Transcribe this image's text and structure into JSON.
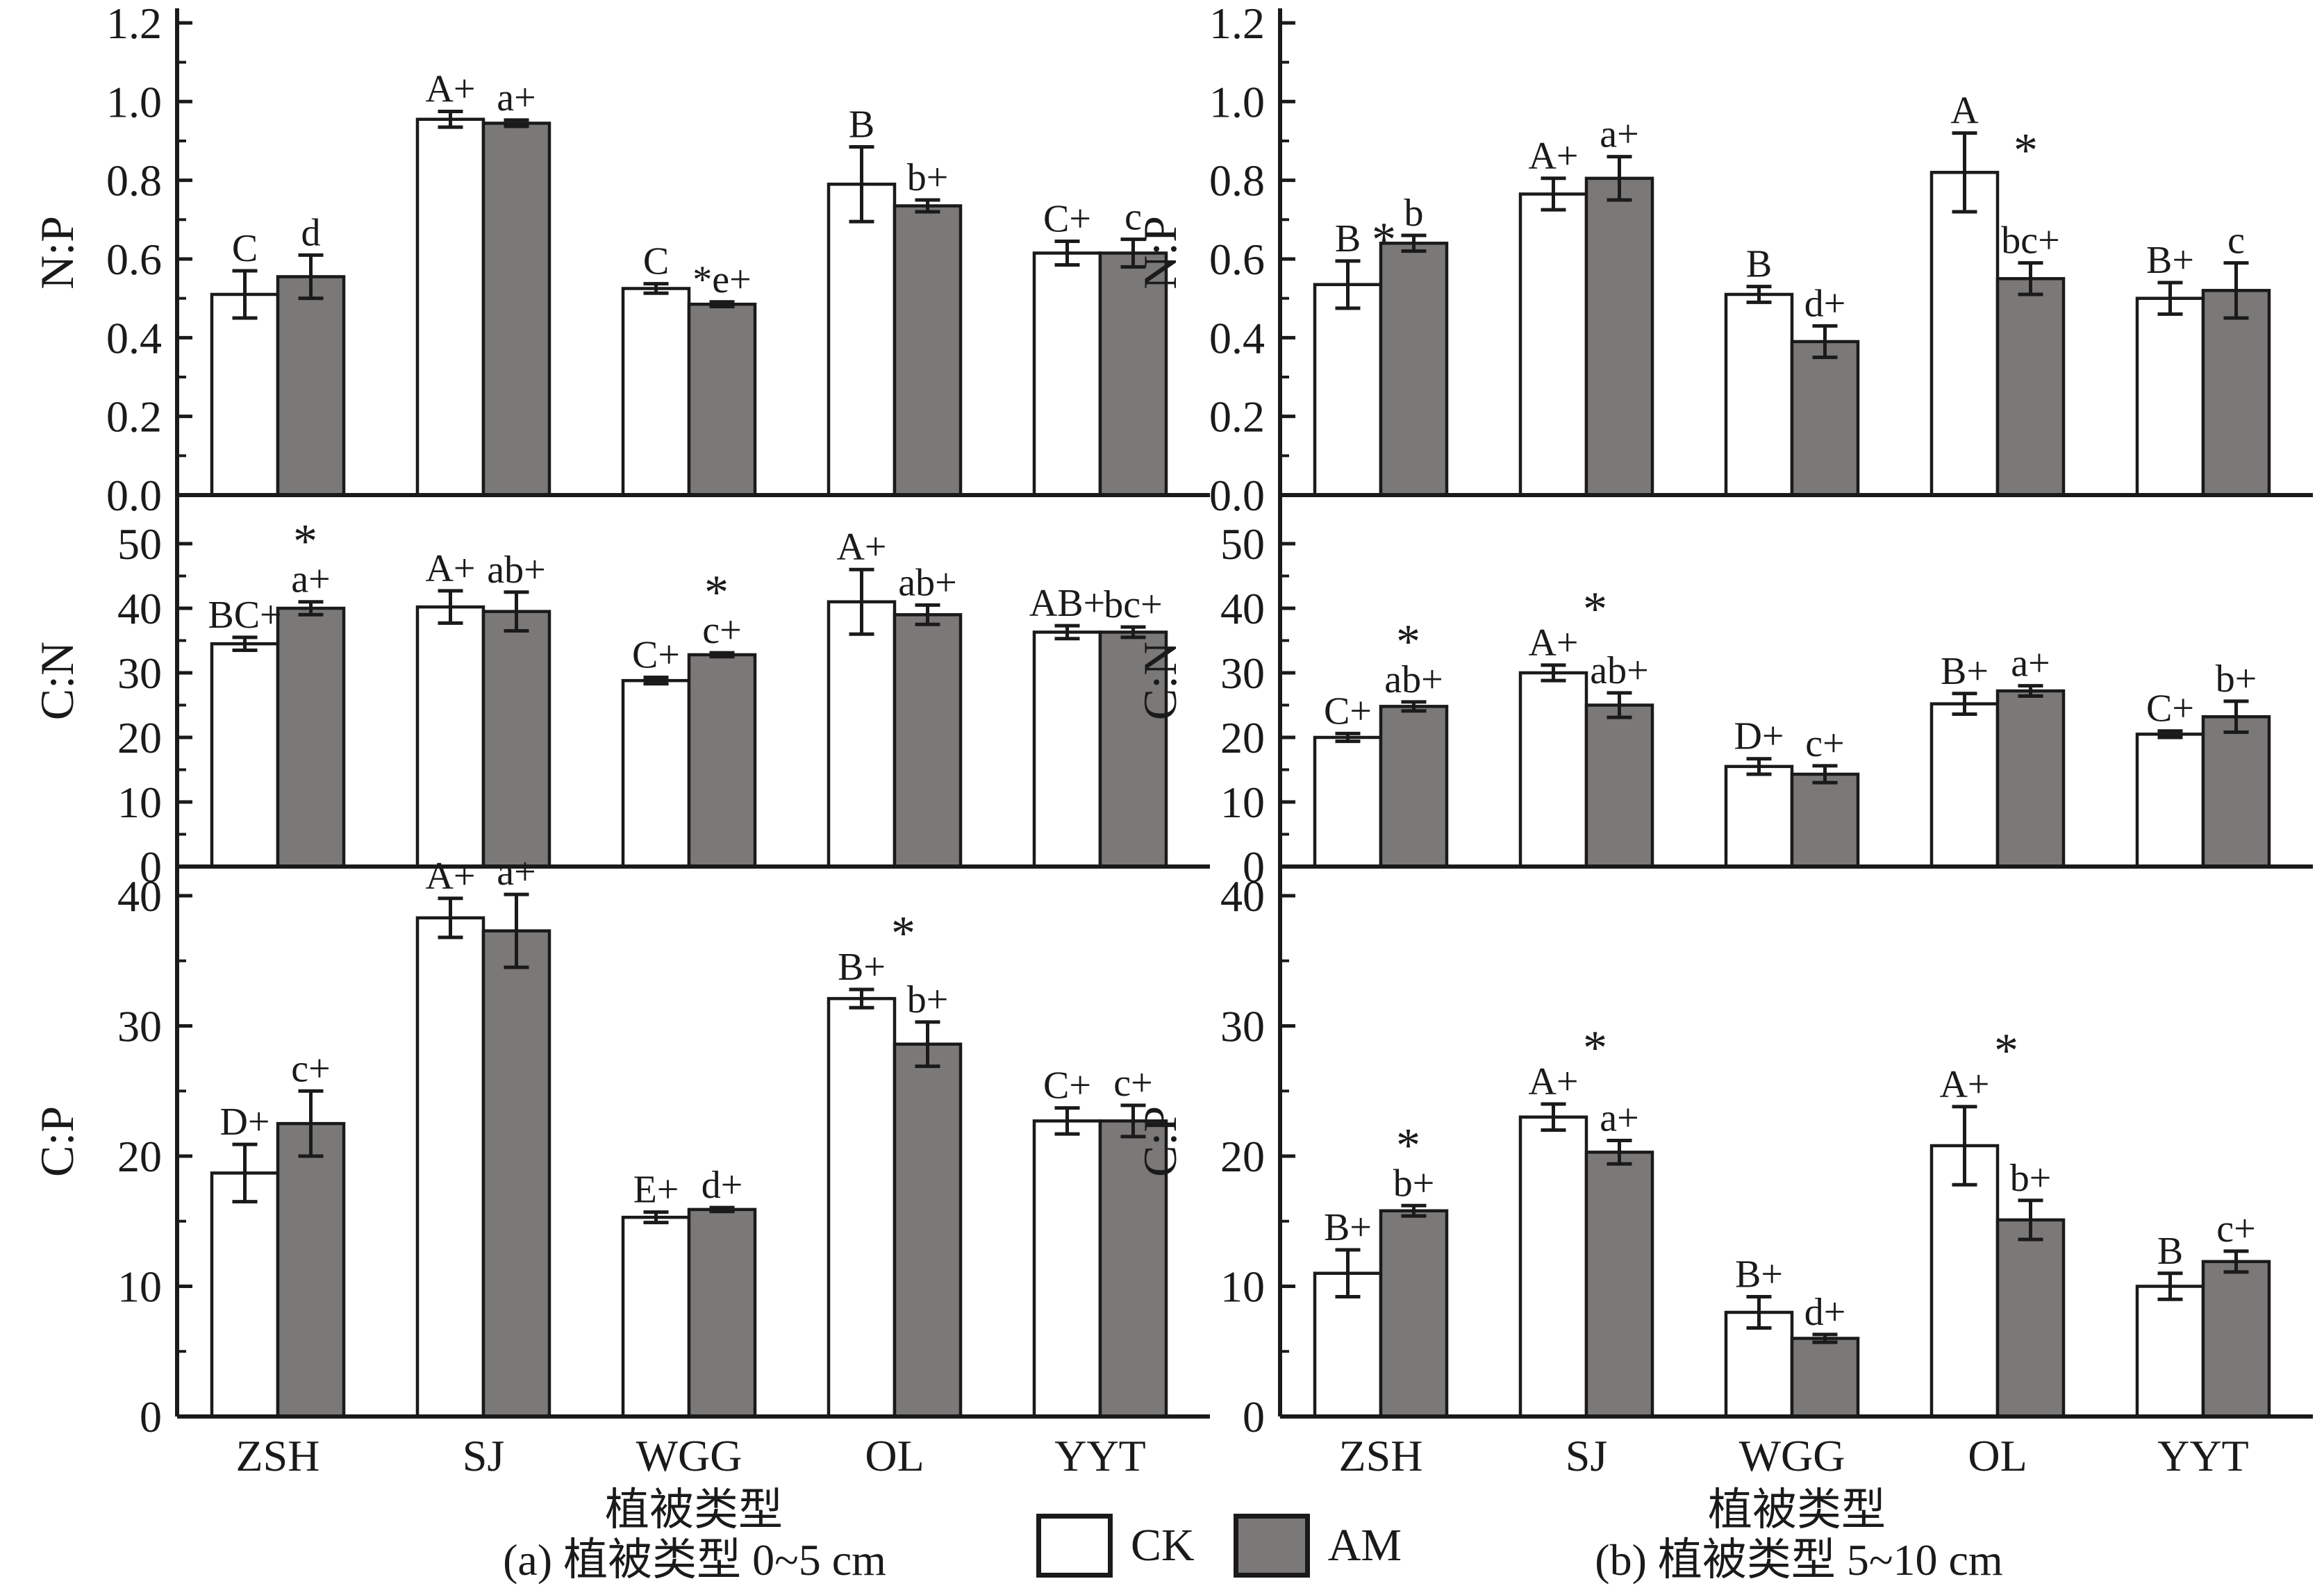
{
  "meta": {
    "legend": {
      "ck": "CK",
      "am": "AM"
    },
    "colors": {
      "ck_fill": "#ffffff",
      "am_fill": "#7b7878",
      "stroke": "#1a1a1a"
    },
    "xlabel": "植被类型",
    "captions": {
      "a": "(a) 植被类型 0~5 cm",
      "b": "(b) 植被类型 5~10 cm"
    }
  },
  "chart_data": [
    {
      "type": "bar",
      "id": "a-np",
      "column": "a",
      "row": 0,
      "ylabel": "N:P",
      "depth": "0~5 cm",
      "ylim": [
        0,
        1.2
      ],
      "ytick_step": 0.2,
      "ytick_minor": 0.1,
      "ydecimals": 1,
      "categories": [
        "ZSH",
        "SJ",
        "WGG",
        "OL",
        "YYT"
      ],
      "series": [
        {
          "name": "CK",
          "values": [
            0.51,
            0.955,
            0.525,
            0.79,
            0.615
          ],
          "errors": [
            0.06,
            0.02,
            0.012,
            0.095,
            0.03
          ],
          "labels": [
            "C",
            "A+",
            "C",
            "B",
            "C+"
          ]
        },
        {
          "name": "AM",
          "values": [
            0.555,
            0.945,
            0.485,
            0.735,
            0.615
          ],
          "errors": [
            0.055,
            0.008,
            0.006,
            0.015,
            0.035
          ],
          "labels": [
            "d",
            "a+",
            "*e+",
            "b+",
            "c"
          ]
        }
      ],
      "stars": []
    },
    {
      "type": "bar",
      "id": "b-np",
      "column": "b",
      "row": 0,
      "ylabel": "N:P",
      "depth": "5~10 cm",
      "ylim": [
        0,
        1.2
      ],
      "ytick_step": 0.2,
      "ytick_minor": 0.1,
      "ydecimals": 1,
      "categories": [
        "ZSH",
        "SJ",
        "WGG",
        "OL",
        "YYT"
      ],
      "series": [
        {
          "name": "CK",
          "values": [
            0.535,
            0.765,
            0.51,
            0.82,
            0.5
          ],
          "errors": [
            0.06,
            0.04,
            0.02,
            0.1,
            0.04
          ],
          "labels": [
            "B",
            "A+",
            "B",
            "A",
            "B+"
          ]
        },
        {
          "name": "AM",
          "values": [
            0.64,
            0.805,
            0.39,
            0.55,
            0.52
          ],
          "errors": [
            0.02,
            0.055,
            0.04,
            0.04,
            0.07
          ],
          "labels": [
            "b",
            "a+",
            "d+",
            "bc+",
            "c"
          ]
        }
      ],
      "stars": [
        {
          "category": "ZSH",
          "anchor": "CK",
          "pos": "right"
        },
        {
          "category": "OL",
          "anchor": "CK",
          "pos": "right-low"
        }
      ]
    },
    {
      "type": "bar",
      "id": "a-cn",
      "column": "a",
      "row": 1,
      "ylabel": "C:N",
      "depth": "0~5 cm",
      "ylim": [
        0,
        50
      ],
      "ytick_step": 10,
      "ytick_minor": 5,
      "ydecimals": 0,
      "categories": [
        "ZSH",
        "SJ",
        "WGG",
        "OL",
        "YYT"
      ],
      "series": [
        {
          "name": "CK",
          "values": [
            34.5,
            40.2,
            28.8,
            41.0,
            36.3
          ],
          "errors": [
            1.0,
            2.5,
            0.5,
            5.0,
            1.0
          ],
          "labels": [
            "BC+",
            "A+",
            "C+",
            "A+",
            "AB+"
          ]
        },
        {
          "name": "AM",
          "values": [
            40.0,
            39.5,
            32.8,
            39.0,
            36.3
          ],
          "errors": [
            1.0,
            3.0,
            0.3,
            1.5,
            0.8
          ],
          "labels": [
            "a+",
            "ab+",
            "c+",
            "ab+",
            "bc+"
          ]
        }
      ],
      "stars": [
        {
          "category": "ZSH",
          "anchor": "AM",
          "pos": "above"
        },
        {
          "category": "WGG",
          "anchor": "AM",
          "pos": "above"
        }
      ]
    },
    {
      "type": "bar",
      "id": "b-cn",
      "column": "b",
      "row": 1,
      "ylabel": "C:N",
      "depth": "5~10 cm",
      "ylim": [
        0,
        50
      ],
      "ytick_step": 10,
      "ytick_minor": 5,
      "ydecimals": 0,
      "categories": [
        "ZSH",
        "SJ",
        "WGG",
        "OL",
        "YYT"
      ],
      "series": [
        {
          "name": "CK",
          "values": [
            20.0,
            30.0,
            15.5,
            25.2,
            20.5
          ],
          "errors": [
            0.6,
            1.2,
            1.2,
            1.6,
            0.5
          ],
          "labels": [
            "C+",
            "A+",
            "D+",
            "B+",
            "C+"
          ]
        },
        {
          "name": "AM",
          "values": [
            24.8,
            25.0,
            14.3,
            27.2,
            23.2
          ],
          "errors": [
            0.7,
            1.9,
            1.3,
            0.8,
            2.4
          ],
          "labels": [
            "ab+",
            "ab+",
            "c+",
            "a+",
            "b+"
          ]
        }
      ],
      "stars": [
        {
          "category": "ZSH",
          "anchor": "AM",
          "pos": "above"
        },
        {
          "category": "SJ",
          "anchor": "CK",
          "pos": "above-right"
        }
      ]
    },
    {
      "type": "bar",
      "id": "a-cp",
      "column": "a",
      "row": 2,
      "ylabel": "C:P",
      "depth": "0~5 cm",
      "ylim": [
        0,
        40
      ],
      "ytick_step": 10,
      "ytick_minor": 5,
      "ydecimals": 0,
      "categories": [
        "ZSH",
        "SJ",
        "WGG",
        "OL",
        "YYT"
      ],
      "series": [
        {
          "name": "CK",
          "values": [
            18.7,
            38.3,
            15.3,
            32.1,
            22.7
          ],
          "errors": [
            2.2,
            1.5,
            0.4,
            0.7,
            1.0
          ],
          "labels": [
            "D+",
            "A+",
            "E+",
            "B+",
            "C+"
          ]
        },
        {
          "name": "AM",
          "values": [
            22.5,
            37.3,
            15.9,
            28.6,
            22.7
          ],
          "errors": [
            2.5,
            2.8,
            0.15,
            1.7,
            1.2
          ],
          "labels": [
            "c+",
            "a+",
            "d+",
            "b+",
            "c+"
          ]
        }
      ],
      "stars": [
        {
          "category": "OL",
          "anchor": "CK",
          "pos": "above-right"
        }
      ]
    },
    {
      "type": "bar",
      "id": "b-cp",
      "column": "b",
      "row": 2,
      "ylabel": "C:P",
      "depth": "5~10 cm",
      "ylim": [
        0,
        40
      ],
      "ytick_step": 10,
      "ytick_minor": 5,
      "ydecimals": 0,
      "categories": [
        "ZSH",
        "SJ",
        "WGG",
        "OL",
        "YYT"
      ],
      "series": [
        {
          "name": "CK",
          "values": [
            11.0,
            23.0,
            8.0,
            20.8,
            10.0
          ],
          "errors": [
            1.8,
            1.0,
            1.2,
            3.0,
            1.0
          ],
          "labels": [
            "B+",
            "A+",
            "B+",
            "A+",
            "B"
          ]
        },
        {
          "name": "AM",
          "values": [
            15.8,
            20.3,
            6.0,
            15.1,
            11.9
          ],
          "errors": [
            0.4,
            0.9,
            0.3,
            1.5,
            0.8
          ],
          "labels": [
            "b+",
            "a+",
            "d+",
            "b+",
            "c+"
          ]
        }
      ],
      "stars": [
        {
          "category": "ZSH",
          "anchor": "AM",
          "pos": "above"
        },
        {
          "category": "SJ",
          "anchor": "CK",
          "pos": "above-right"
        },
        {
          "category": "OL",
          "anchor": "CK",
          "pos": "above-right"
        }
      ]
    }
  ]
}
